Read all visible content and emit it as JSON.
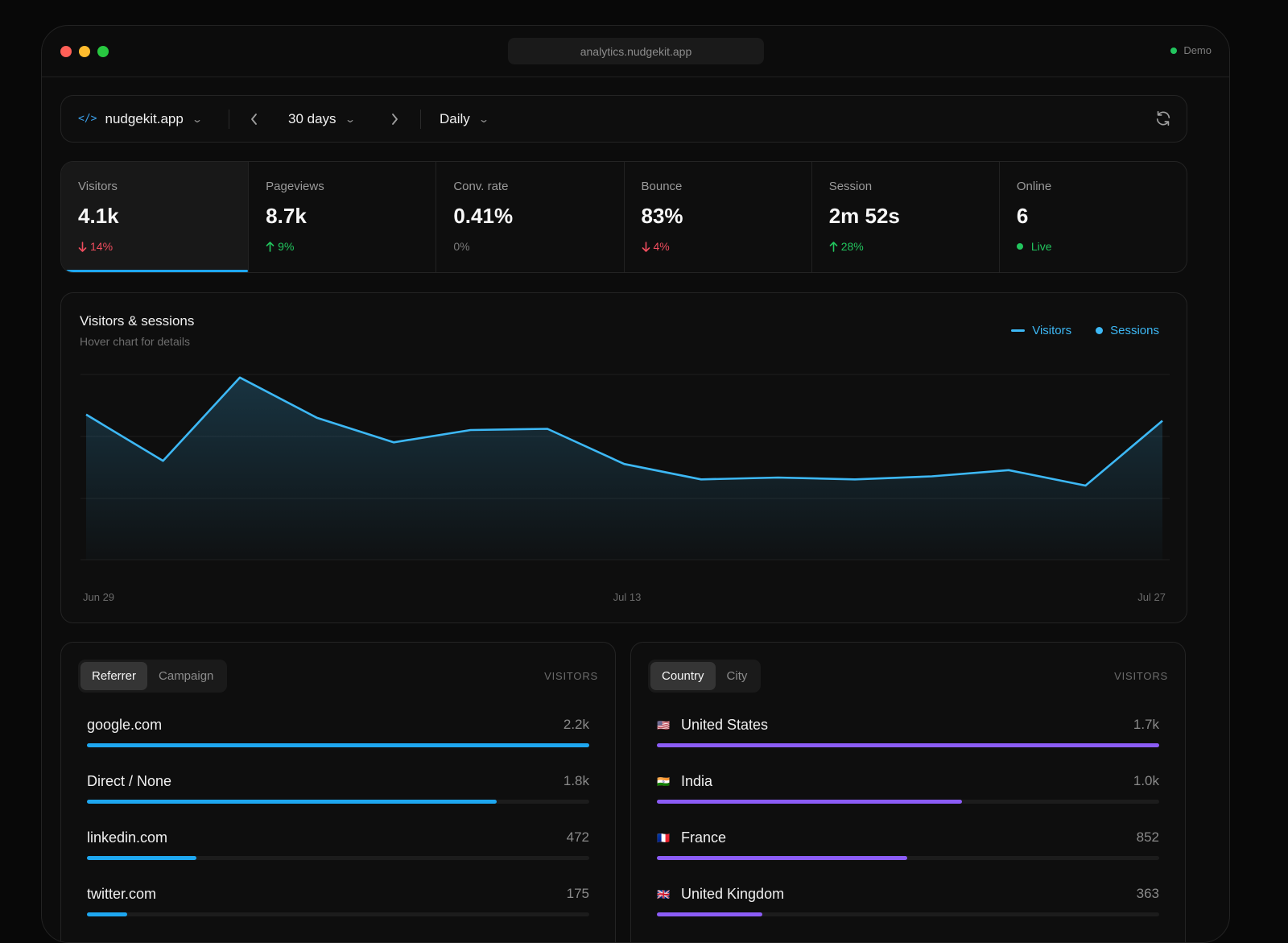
{
  "window": {
    "url": "analytics.nudgekit.app",
    "mode_label": "Demo"
  },
  "toolbar": {
    "site_icon": "</>",
    "site": "nudgekit.app",
    "range": "30 days",
    "interval": "Daily"
  },
  "metrics": [
    {
      "label": "Visitors",
      "value": "4.1k",
      "delta": "14%",
      "trend": "down"
    },
    {
      "label": "Pageviews",
      "value": "8.7k",
      "delta": "9%",
      "trend": "up"
    },
    {
      "label": "Conv. rate",
      "value": "0.41%",
      "delta": "0%",
      "trend": "neutral"
    },
    {
      "label": "Bounce",
      "value": "83%",
      "delta": "4%",
      "trend": "down"
    },
    {
      "label": "Session",
      "value": "2m 52s",
      "delta": "28%",
      "trend": "up"
    },
    {
      "label": "Online",
      "value": "6",
      "delta": "Live",
      "trend": "live"
    }
  ],
  "chart": {
    "title": "Visitors & sessions",
    "subtitle": "Hover chart for details",
    "legend": [
      "Visitors",
      "Sessions"
    ],
    "color": "#3db8f5"
  },
  "chart_data": {
    "type": "area",
    "title": "Visitors & sessions",
    "x_tick_labels": [
      "Jun 29",
      "Jul 13",
      "Jul 27"
    ],
    "series": [
      {
        "name": "Visitors",
        "values": [
          235,
          160,
          295,
          230,
          190,
          210,
          212,
          155,
          130,
          133,
          130,
          135,
          145,
          120,
          225
        ]
      }
    ],
    "ylim": [
      0,
      300
    ],
    "grid": true,
    "legend_position": "top-right"
  },
  "referrers": {
    "tabs": [
      "Referrer",
      "Campaign"
    ],
    "active_tab": 0,
    "column": "VISITORS",
    "color": "#1ea7f0",
    "rows": [
      {
        "name": "google.com",
        "value": "2.2k",
        "share": 1.0
      },
      {
        "name": "Direct / None",
        "value": "1.8k",
        "share": 0.815
      },
      {
        "name": "linkedin.com",
        "value": "472",
        "share": 0.218
      },
      {
        "name": "twitter.com",
        "value": "175",
        "share": 0.08
      }
    ]
  },
  "countries": {
    "tabs": [
      "Country",
      "City"
    ],
    "active_tab": 0,
    "column": "VISITORS",
    "color": "#8b5cf6",
    "rows": [
      {
        "flag": "🇺🇸",
        "flag_icon": "us-flag-icon",
        "name": "United States",
        "value": "1.7k",
        "share": 1.0
      },
      {
        "flag": "🇮🇳",
        "flag_icon": "india-flag-icon",
        "name": "India",
        "value": "1.0k",
        "share": 0.607
      },
      {
        "flag": "🇫🇷",
        "flag_icon": "france-flag-icon",
        "name": "France",
        "value": "852",
        "share": 0.498
      },
      {
        "flag": "🇬🇧",
        "flag_icon": "uk-flag-icon",
        "name": "United Kingdom",
        "value": "363",
        "share": 0.21
      }
    ]
  }
}
